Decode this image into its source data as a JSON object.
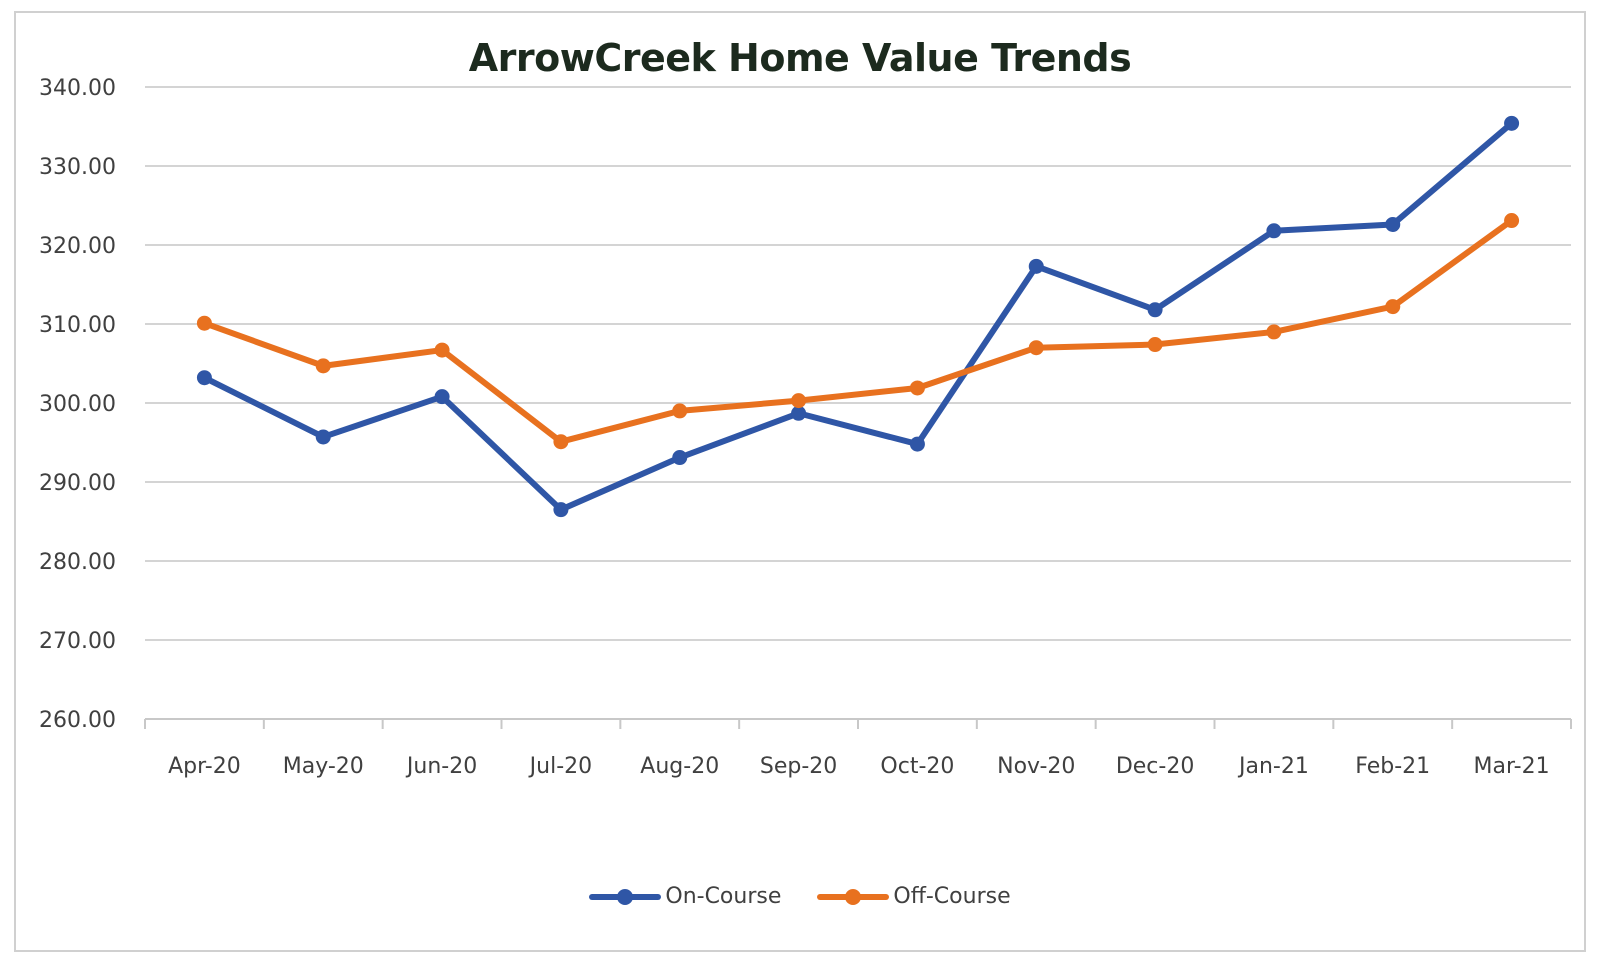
{
  "chart_data": {
    "type": "line",
    "title": "ArrowCreek Home Value Trends",
    "xlabel": "",
    "ylabel": "",
    "categories": [
      "Apr-20",
      "May-20",
      "Jun-20",
      "Jul-20",
      "Aug-20",
      "Sep-20",
      "Oct-20",
      "Nov-20",
      "Dec-20",
      "Jan-21",
      "Feb-21",
      "Mar-21"
    ],
    "series": [
      {
        "name": "On-Course",
        "color": "#2f56a6",
        "values": [
          303.2,
          295.7,
          300.8,
          286.5,
          293.1,
          298.7,
          294.8,
          317.3,
          311.8,
          321.8,
          322.6,
          335.4
        ]
      },
      {
        "name": "Off-Course",
        "color": "#e8711f",
        "values": [
          310.1,
          304.7,
          306.7,
          295.1,
          299.0,
          300.3,
          301.9,
          307.0,
          307.4,
          309.0,
          312.2,
          323.1
        ]
      }
    ],
    "ylim": [
      260,
      340
    ],
    "yticks": [
      "260.00",
      "270.00",
      "280.00",
      "290.00",
      "300.00",
      "310.00",
      "320.00",
      "330.00",
      "340.00"
    ],
    "grid": true,
    "legend_position": "bottom"
  },
  "legend": {
    "on_course": "On-Course",
    "off_course": "Off-Course"
  }
}
